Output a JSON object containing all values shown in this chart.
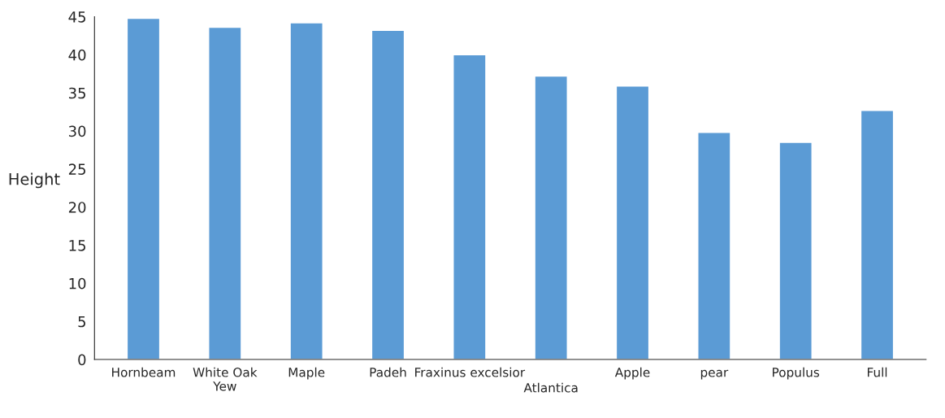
{
  "chart_data": {
    "type": "bar",
    "ylabel": "Height",
    "categories": [
      "Hornbeam",
      "White Oak\nYew",
      "Maple",
      "Padeh",
      "Fraxinus excelsior",
      "Atlantica",
      "Apple",
      "pear",
      "Populus",
      "Full"
    ],
    "values": [
      44.8,
      43.6,
      44.2,
      43.2,
      40.0,
      37.2,
      35.9,
      29.8,
      28.5,
      32.7
    ],
    "color": "#5b9bd5",
    "ylim": [
      0,
      45
    ],
    "yticks": [
      0,
      5,
      10,
      15,
      20,
      25,
      30,
      35,
      40,
      45
    ],
    "grid": false,
    "legend": false
  }
}
